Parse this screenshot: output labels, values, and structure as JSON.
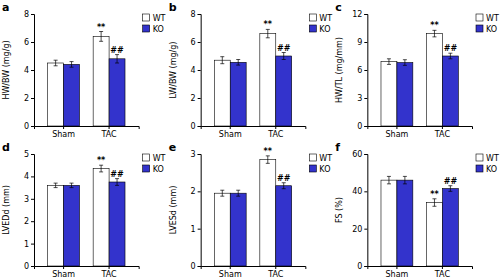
{
  "chart_data": [
    {
      "type": "bar",
      "title": "a",
      "ylabel": "HW/BW (mg/g)",
      "ylim": [
        0,
        8
      ],
      "yticks": [
        0,
        2,
        4,
        6,
        8
      ],
      "categories": [
        "Sham",
        "TAC"
      ],
      "legend": "upper right",
      "grid": false,
      "series": [
        {
          "name": "WT",
          "color": "#ffffff",
          "values": [
            4.5,
            6.4
          ],
          "errors": [
            0.2,
            0.35
          ],
          "annotations": [
            null,
            "**"
          ]
        },
        {
          "name": "KO",
          "color": "#3333cc",
          "values": [
            4.4,
            4.8
          ],
          "errors": [
            0.2,
            0.3
          ],
          "annotations": [
            null,
            "##"
          ]
        }
      ]
    },
    {
      "type": "bar",
      "title": "b",
      "ylabel": "LW/BW (mg/g)",
      "ylim": [
        0,
        8
      ],
      "yticks": [
        0,
        2,
        4,
        6,
        8
      ],
      "categories": [
        "Sham",
        "TAC"
      ],
      "legend": "upper right",
      "grid": false,
      "series": [
        {
          "name": "WT",
          "color": "#ffffff",
          "values": [
            4.7,
            6.6
          ],
          "errors": [
            0.25,
            0.3
          ],
          "annotations": [
            null,
            "**"
          ]
        },
        {
          "name": "KO",
          "color": "#3333cc",
          "values": [
            4.55,
            5.0
          ],
          "errors": [
            0.2,
            0.25
          ],
          "annotations": [
            null,
            "##"
          ]
        }
      ]
    },
    {
      "type": "bar",
      "title": "c",
      "ylabel": "HW/TL (mg/mm)",
      "ylim": [
        0,
        12
      ],
      "yticks": [
        0,
        3,
        6,
        9,
        12
      ],
      "categories": [
        "Sham",
        "TAC"
      ],
      "legend": "upper right",
      "grid": false,
      "series": [
        {
          "name": "WT",
          "color": "#ffffff",
          "values": [
            6.9,
            9.9
          ],
          "errors": [
            0.3,
            0.35
          ],
          "annotations": [
            null,
            "**"
          ]
        },
        {
          "name": "KO",
          "color": "#3333cc",
          "values": [
            6.8,
            7.5
          ],
          "errors": [
            0.3,
            0.3
          ],
          "annotations": [
            null,
            "##"
          ]
        }
      ]
    },
    {
      "type": "bar",
      "title": "d",
      "ylabel": "LVEDd (mm)",
      "ylim": [
        0,
        5
      ],
      "yticks": [
        0,
        1,
        2,
        3,
        4,
        5
      ],
      "categories": [
        "Sham",
        "TAC"
      ],
      "legend": "upper right",
      "grid": false,
      "series": [
        {
          "name": "WT",
          "color": "#ffffff",
          "values": [
            3.6,
            4.35
          ],
          "errors": [
            0.1,
            0.15
          ],
          "annotations": [
            null,
            "**"
          ]
        },
        {
          "name": "KO",
          "color": "#3333cc",
          "values": [
            3.6,
            3.75
          ],
          "errors": [
            0.1,
            0.15
          ],
          "annotations": [
            null,
            "##"
          ]
        }
      ]
    },
    {
      "type": "bar",
      "title": "e",
      "ylabel": "LVESd (mm)",
      "ylim": [
        0,
        3
      ],
      "yticks": [
        0,
        1,
        2,
        3
      ],
      "categories": [
        "Sham",
        "TAC"
      ],
      "legend": "upper right",
      "grid": false,
      "series": [
        {
          "name": "WT",
          "color": "#ffffff",
          "values": [
            1.95,
            2.85
          ],
          "errors": [
            0.08,
            0.1
          ],
          "annotations": [
            null,
            "**"
          ]
        },
        {
          "name": "KO",
          "color": "#3333cc",
          "values": [
            1.95,
            2.15
          ],
          "errors": [
            0.08,
            0.08
          ],
          "annotations": [
            null,
            "##"
          ]
        }
      ]
    },
    {
      "type": "bar",
      "title": "f",
      "ylabel": "FS (%)",
      "ylim": [
        0,
        60
      ],
      "yticks": [
        0,
        20,
        40,
        60
      ],
      "categories": [
        "Sham",
        "TAC"
      ],
      "legend": "upper right",
      "grid": false,
      "series": [
        {
          "name": "WT",
          "color": "#ffffff",
          "values": [
            46.0,
            34.0
          ],
          "errors": [
            2.0,
            2.0
          ],
          "annotations": [
            null,
            "**"
          ]
        },
        {
          "name": "KO",
          "color": "#3333cc",
          "values": [
            46.0,
            41.5
          ],
          "errors": [
            2.0,
            1.5
          ],
          "annotations": [
            null,
            "##"
          ]
        }
      ]
    }
  ]
}
